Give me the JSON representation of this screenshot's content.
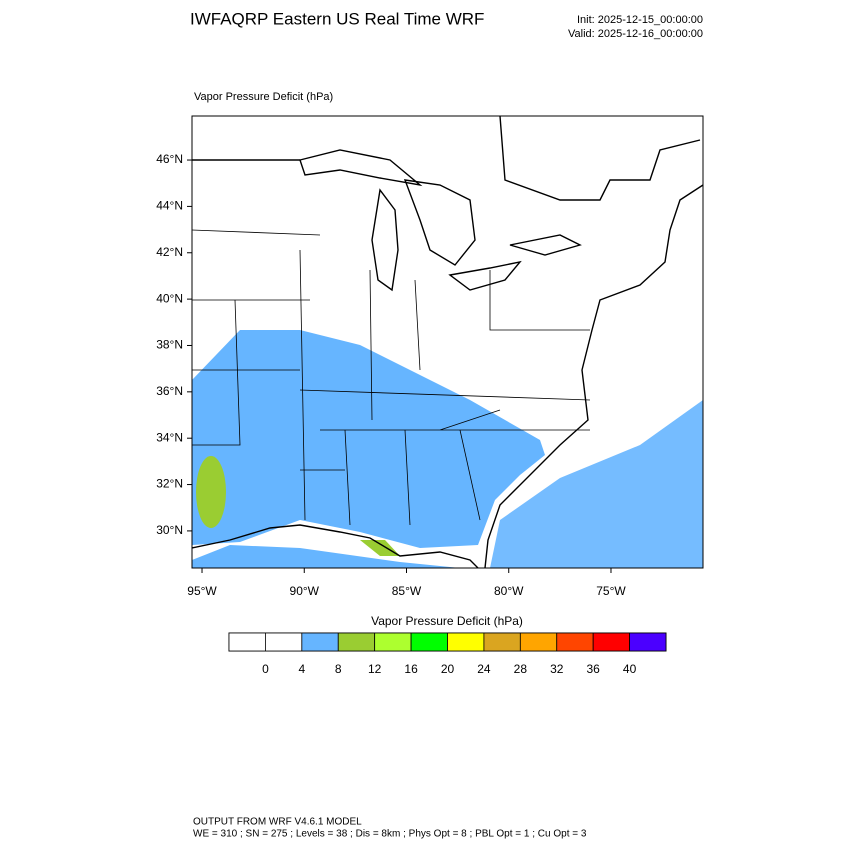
{
  "header": {
    "title": "IWFAQRP Eastern US Real Time WRF",
    "init": "Init: 2025-12-15_00:00:00",
    "valid": "Valid: 2025-12-16_00:00:00"
  },
  "map": {
    "subtitle": "Vapor Pressure Deficit   (hPa)",
    "xlim": [
      -95.49,
      -70.5
    ],
    "ylim": [
      28.4,
      47.9
    ],
    "xticks": [
      {
        "value": -95,
        "label": "95°W"
      },
      {
        "value": -90,
        "label": "90°W"
      },
      {
        "value": -85,
        "label": "85°W"
      },
      {
        "value": -80,
        "label": "80°W"
      },
      {
        "value": -75,
        "label": "75°W"
      }
    ],
    "yticks": [
      {
        "value": 30,
        "label": "30°N"
      },
      {
        "value": 32,
        "label": "32°N"
      },
      {
        "value": 34,
        "label": "34°N"
      },
      {
        "value": 36,
        "label": "36°N"
      },
      {
        "value": 38,
        "label": "38°N"
      },
      {
        "value": 40,
        "label": "40°N"
      },
      {
        "value": 42,
        "label": "42°N"
      },
      {
        "value": 44,
        "label": "44°N"
      },
      {
        "value": 46,
        "label": "46°N"
      }
    ]
  },
  "colorbar": {
    "title": "Vapor Pressure Deficit  (hPa)",
    "levels": [
      0,
      4,
      8,
      12,
      16,
      20,
      24,
      28,
      32,
      36,
      40
    ],
    "colors": [
      "#ffffff",
      "#ffffff",
      "#66b5ff",
      "#9acd32",
      "#adff2f",
      "#00ff00",
      "#ffff00",
      "#daa520",
      "#ffa500",
      "#ff4500",
      "#ff0000",
      "#4b00ff"
    ]
  },
  "footer": {
    "line1": "OUTPUT FROM WRF V4.6.1 MODEL",
    "line2": "WE = 310 ; SN = 275 ; Levels = 38 ; Dis = 8km ; Phys Opt = 8 ; PBL Opt = 1 ; Cu Opt = 3"
  }
}
